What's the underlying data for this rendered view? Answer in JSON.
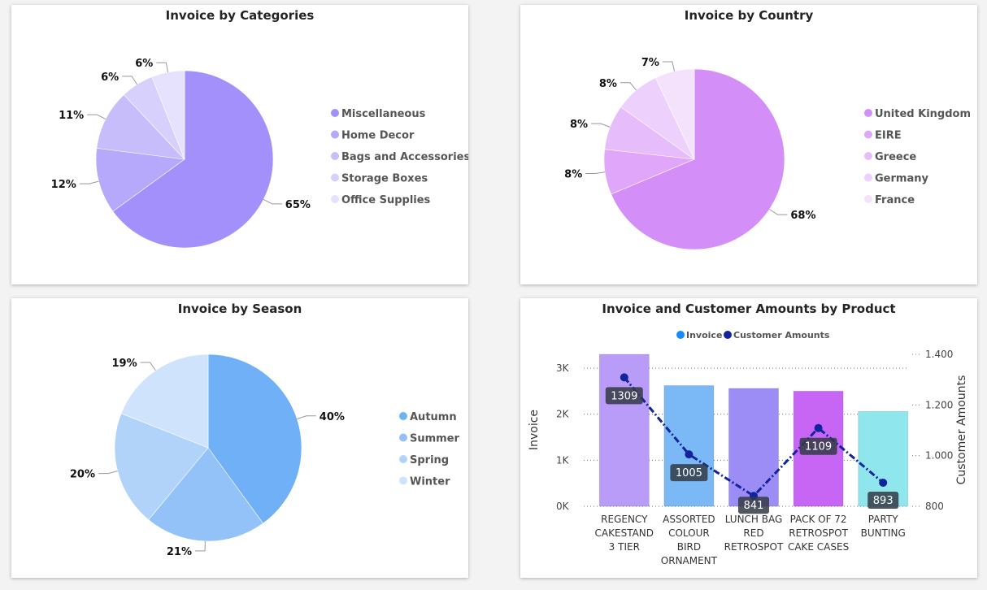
{
  "chart_data": [
    {
      "type": "pie",
      "title": "Invoice by Categories",
      "labels": [
        "Miscellaneous",
        "Home Decor",
        "Bags and Accessories",
        "Storage Boxes",
        "Office Supplies"
      ],
      "values": [
        65,
        12,
        11,
        6,
        6
      ],
      "value_labels": [
        "65%",
        "12%",
        "11%",
        "6%",
        "6%"
      ],
      "colors": [
        "#a390fb",
        "#b6a8fb",
        "#c7bdfb",
        "#d7d0fc",
        "#e6e1fd"
      ],
      "legend": "right"
    },
    {
      "type": "pie",
      "title": "Invoice by Country",
      "labels": [
        "United Kingdom",
        "EIRE",
        "Greece",
        "Germany",
        "France"
      ],
      "values": [
        68,
        8,
        8,
        8,
        7
      ],
      "value_labels": [
        "68%",
        "8%",
        "8%",
        "8%",
        "7%"
      ],
      "colors": [
        "#d48ef8",
        "#dfa6fa",
        "#e7bcfb",
        "#eed0fc",
        "#f4e2fd"
      ],
      "legend": "right"
    },
    {
      "type": "pie",
      "title": "Invoice by Season",
      "labels": [
        "Autumn",
        "Summer",
        "Spring",
        "Winter"
      ],
      "values": [
        40,
        21,
        20,
        19
      ],
      "value_labels": [
        "40%",
        "21%",
        "20%",
        "19%"
      ],
      "colors": [
        "#6fb0f7",
        "#93c2f8",
        "#b1d3fa",
        "#cfe3fc"
      ],
      "legend": "right"
    },
    {
      "type": "bar",
      "title": "Invoice and Customer Amounts by Product",
      "categories": [
        [
          "REGENCY",
          "CAKESTAND",
          "3 TIER"
        ],
        [
          "ASSORTED",
          "COLOUR",
          "BIRD",
          "ORNAMENT"
        ],
        [
          "LUNCH BAG",
          "RED",
          "RETROSPOT"
        ],
        [
          "PACK OF 72",
          "RETROSPOT",
          "CAKE CASES"
        ],
        [
          "PARTY",
          "BUNTING"
        ]
      ],
      "bar_colors": [
        "#b99cf8",
        "#7ab8f6",
        "#9c8df6",
        "#c766f4",
        "#8fe6ed"
      ],
      "series": [
        {
          "name": "Invoice",
          "type": "bar",
          "axis": "left",
          "color": "#118dff",
          "values": [
            3300,
            2620,
            2560,
            2500,
            2060
          ]
        },
        {
          "name": "Customer Amounts",
          "type": "line",
          "axis": "right",
          "color": "#12239e",
          "values": [
            1309,
            1005,
            841,
            1109,
            893
          ],
          "data_labels": [
            "1309",
            "1005",
            "841",
            "1109",
            "893"
          ]
        }
      ],
      "ylabel": "Invoice",
      "y2label": "Customer Amounts",
      "ylim": [
        0,
        3300
      ],
      "y2lim": [
        800,
        1400
      ],
      "yticks": [
        0,
        1000,
        2000,
        3000
      ],
      "ytick_labels": [
        "0K",
        "1K",
        "2K",
        "3K"
      ],
      "y2ticks": [
        800,
        1000,
        1200,
        1400
      ],
      "y2tick_labels": [
        "800",
        "1.000",
        "1.200",
        "1.400"
      ],
      "legend": "top-center",
      "grid": true
    }
  ]
}
